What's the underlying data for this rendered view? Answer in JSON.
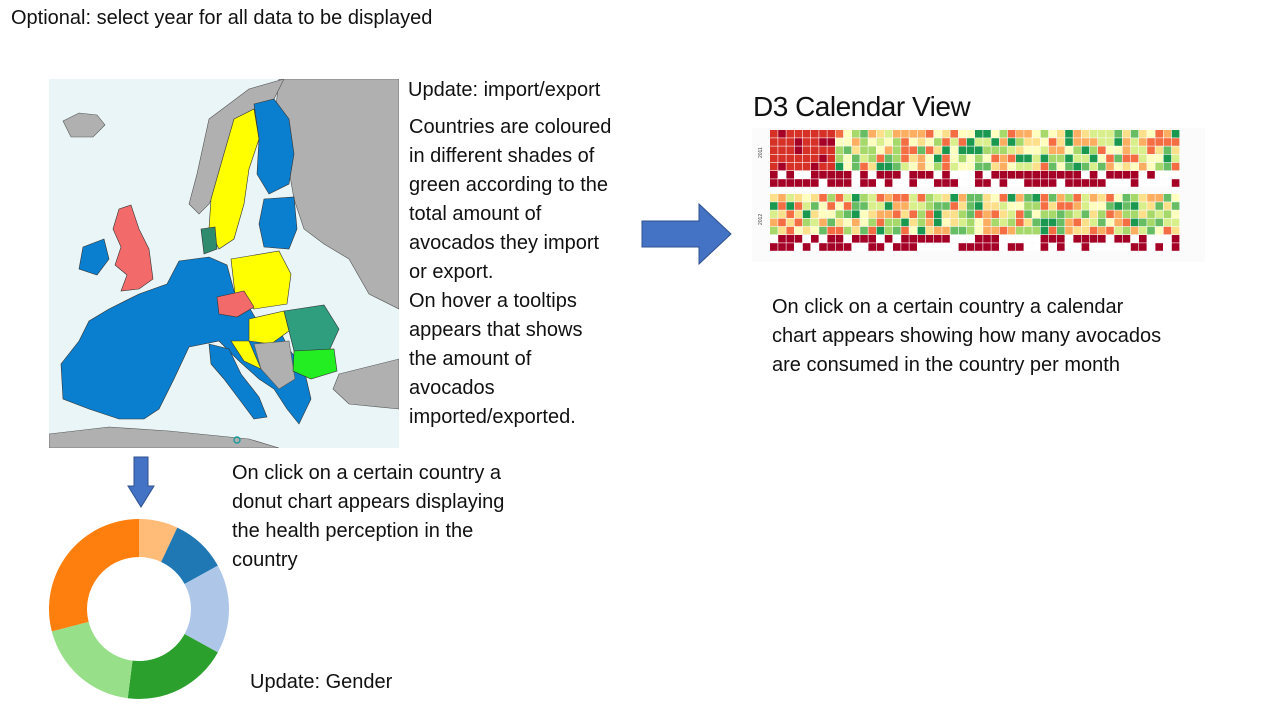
{
  "notes": {
    "top": "Optional: select year for all data to be displayed",
    "update_import": "Update: import/export",
    "map_description": "Countries are coloured\nin different shades of\ngreen according to the\ntotal amount of\navocados they import\nor export.\nOn hover a tooltips\nappears that shows\nthe amount of\navocados\nimported/exported.",
    "calendar_title": "D3 Calendar View",
    "calendar_description": "On click on a certain country a calendar\nchart appears showing how many avocados\nare consumed in the country per month",
    "donut_description": "On click on a certain country a\ndonut chart appears displaying\nthe health perception in the\ncountry",
    "update_gender": "Update: Gender"
  },
  "calendar": {
    "year_labels": [
      "2011",
      "2012"
    ]
  },
  "donut": {
    "slice_shares": [
      0.07,
      0.1,
      0.16,
      0.19,
      0.19,
      0.29
    ],
    "slice_colors": [
      "#ffbb78",
      "#1f77b4",
      "#aec7e8",
      "#2ca02c",
      "#98df8a",
      "#ff7f0e"
    ]
  },
  "colors": {
    "arrow": "#4472c4",
    "map_sea": "#e9f5f6",
    "map_eu": "#0b7fcf",
    "map_yellow": "#ffff00",
    "map_red": "#f26a6a",
    "map_gray": "#b0b0b0"
  }
}
